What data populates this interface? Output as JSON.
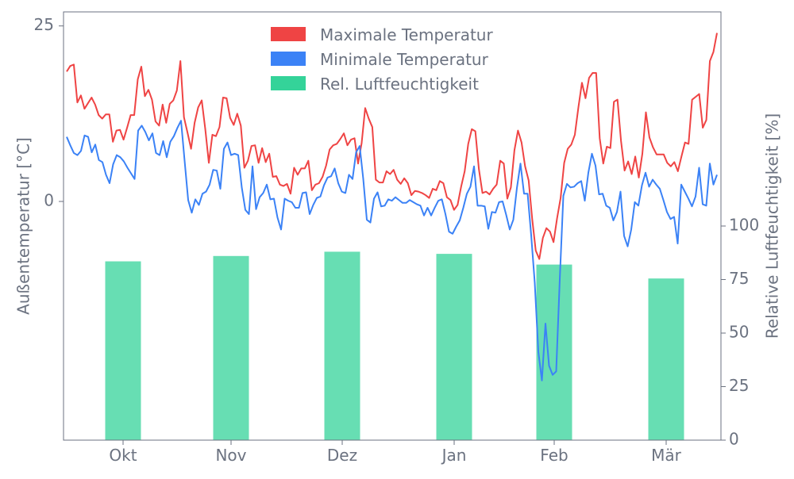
{
  "chart_data": {
    "type": "line+bar",
    "x_axis": {
      "tick_labels": [
        "Okt",
        "Nov",
        "Dez",
        "Jan",
        "Feb",
        "Mär"
      ]
    },
    "y_left": {
      "label": "Außentemperatur [°C]",
      "ticks": [
        0,
        25
      ],
      "ylim": [
        -34,
        27
      ]
    },
    "y_right": {
      "label": "Relative Luftfeuchtigkeit [%]",
      "ticks": [
        0,
        25,
        50,
        75,
        100
      ],
      "ylim": [
        0,
        200
      ]
    },
    "legend": {
      "placement": "top-center",
      "entries": [
        "Maximale Temperatur",
        "Minimale Temperatur",
        "Rel. Luftfeuchtigkeit"
      ]
    },
    "series": [
      {
        "name": "Maximale Temperatur",
        "color": "#ef4444",
        "values": [
          18.5,
          19.3,
          19.5,
          14.1,
          15.1,
          13.2,
          14.0,
          14.8,
          13.8,
          12.3,
          11.8,
          12.4,
          12.4,
          8.5,
          10.1,
          10.2,
          8.8,
          10.5,
          12.3,
          12.3,
          17.4,
          19.2,
          15.0,
          15.9,
          14.5,
          11.4,
          10.8,
          13.8,
          11.2,
          13.9,
          14.4,
          15.8,
          20.0,
          12.0,
          9.8,
          7.5,
          11.2,
          13.4,
          14.4,
          10.3,
          5.5,
          9.5,
          9.3,
          10.6,
          14.8,
          14.7,
          11.9,
          10.9,
          12.5,
          10.8,
          4.8,
          5.8,
          7.9,
          8.0,
          5.5,
          7.6,
          5.6,
          6.8,
          3.5,
          3.6,
          2.4,
          2.2,
          2.5,
          1.1,
          4.8,
          3.8,
          4.7,
          4.7,
          5.8,
          1.6,
          2.4,
          2.6,
          3.5,
          5.1,
          7.4,
          8.0,
          8.2,
          8.9,
          9.7,
          8.0,
          8.8,
          9.0,
          5.4,
          8.3,
          13.3,
          11.8,
          10.6,
          3.1,
          2.7,
          2.7,
          4.3,
          3.9,
          4.5,
          3.1,
          2.5,
          3.3,
          2.6,
          0.9,
          1.5,
          1.4,
          1.2,
          0.9,
          0.5,
          1.8,
          1.6,
          2.9,
          2.6,
          0.6,
          0.2,
          -1.2,
          -0.5,
          2.1,
          4.3,
          8.2,
          10.3,
          10.0,
          4.6,
          1.2,
          1.4,
          1.0,
          1.8,
          2.4,
          5.8,
          5.4,
          0.4,
          2.0,
          7.3,
          10.1,
          8.4,
          5.0,
          3.0,
          -2.5,
          -7.0,
          -8.2,
          -5.2,
          -3.8,
          -4.3,
          -5.8,
          -2.4,
          0.5,
          5.5,
          7.5,
          8.1,
          9.5,
          13.4,
          16.9,
          14.7,
          17.6,
          18.3,
          18.3,
          9.0,
          5.4,
          7.8,
          7.6,
          14.2,
          14.5,
          8.6,
          4.4,
          5.7,
          3.9,
          6.4,
          3.4,
          6.8,
          12.7,
          9.1,
          7.7,
          6.7,
          6.7,
          6.7,
          5.5,
          5.0,
          5.6,
          4.3,
          6.4,
          8.4,
          8.2,
          14.5,
          14.9,
          15.3,
          10.5,
          11.6,
          20.0,
          21.3,
          24.0
        ]
      },
      {
        "name": "Minimale Temperatur",
        "color": "#3b82f6",
        "values": [
          9.2,
          8.0,
          6.9,
          6.6,
          7.2,
          9.4,
          9.2,
          7.0,
          8.1,
          5.9,
          5.6,
          3.8,
          2.6,
          5.3,
          6.6,
          6.3,
          5.7,
          4.8,
          4.0,
          3.2,
          10.1,
          10.8,
          9.9,
          8.7,
          9.7,
          6.9,
          6.6,
          8.6,
          6.3,
          8.5,
          9.3,
          10.5,
          11.5,
          5.8,
          0.2,
          -1.6,
          0.3,
          -0.5,
          1.1,
          1.4,
          2.4,
          4.5,
          4.4,
          1.8,
          7.5,
          8.4,
          6.6,
          6.8,
          6.6,
          2.0,
          -1.2,
          -1.8,
          5.0,
          -1.1,
          0.6,
          1.2,
          2.4,
          0.3,
          0.4,
          -2.3,
          -4.0,
          0.4,
          0.1,
          -0.1,
          -0.9,
          -0.9,
          1.2,
          1.3,
          -1.8,
          -0.5,
          0.5,
          0.7,
          2.3,
          3.4,
          3.6,
          4.7,
          2.6,
          1.4,
          1.2,
          3.8,
          3.2,
          7.0,
          7.9,
          3.2,
          -2.6,
          -3.0,
          0.4,
          1.3,
          -0.7,
          -0.6,
          0.3,
          0.1,
          0.6,
          0.2,
          -0.2,
          -0.2,
          0.2,
          -0.1,
          -0.4,
          -0.6,
          -2.0,
          -0.9,
          -2.0,
          -0.9,
          0.1,
          0.3,
          -1.8,
          -4.3,
          -4.6,
          -3.6,
          -2.7,
          -0.9,
          1.1,
          2.1,
          5.0,
          -0.6,
          -0.6,
          -0.7,
          -3.9,
          -1.5,
          -1.6,
          -0.1,
          0.0,
          -1.9,
          -4.0,
          -2.6,
          1.9,
          5.4,
          1.1,
          1.1,
          -4.8,
          -11.6,
          -21.4,
          -25.5,
          -17.4,
          -23.4,
          -24.7,
          -24.2,
          -11.1,
          0.8,
          2.5,
          2.0,
          2.1,
          2.6,
          2.9,
          0.1,
          4.1,
          6.8,
          5.1,
          1.0,
          1.1,
          -0.6,
          -0.9,
          -2.7,
          -1.5,
          1.4,
          -4.9,
          -6.4,
          -4.0,
          -0.1,
          -0.6,
          2.3,
          4.1,
          2.1,
          3.1,
          2.4,
          1.8,
          0.2,
          -1.5,
          -2.5,
          -2.2,
          -6.0,
          2.4,
          1.4,
          0.4,
          -0.7,
          0.7,
          4.8,
          -0.4,
          -0.6,
          5.4,
          2.4,
          3.8
        ]
      },
      {
        "name": "Rel. Luftfeuchtigkeit",
        "color": "#34d399",
        "type": "bar",
        "categories": [
          "Okt",
          "Nov",
          "Dez",
          "Jan",
          "Feb",
          "Mär"
        ],
        "values": [
          83.5,
          86,
          88,
          87,
          82,
          75.5
        ]
      }
    ]
  }
}
